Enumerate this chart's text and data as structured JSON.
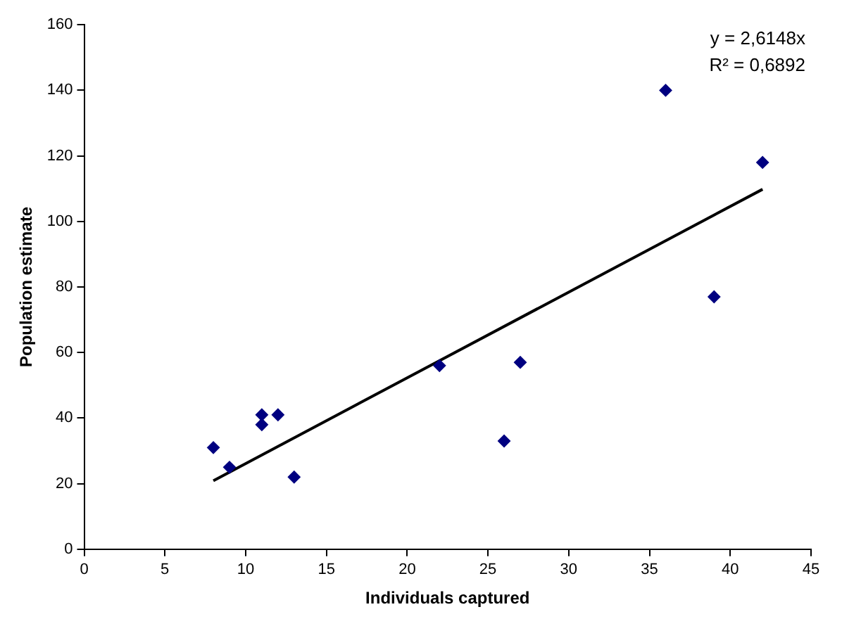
{
  "chart_data": {
    "type": "scatter",
    "xlabel": "Individuals captured",
    "ylabel": "Population estimate",
    "xlim": [
      0,
      45
    ],
    "xticks": [
      0,
      5,
      10,
      15,
      20,
      25,
      30,
      35,
      40,
      45
    ],
    "ylim": [
      0,
      160
    ],
    "yticks": [
      0,
      20,
      40,
      60,
      80,
      100,
      120,
      140,
      160
    ],
    "grid": false,
    "legend": false,
    "marker": "diamond",
    "annotations": [
      "y = 2,6148x",
      "R² = 0,6892"
    ],
    "series": [
      {
        "type": "scatter",
        "color": "#000080",
        "x": [
          8,
          9,
          11,
          11,
          12,
          13,
          22,
          26,
          27,
          36,
          39,
          42
        ],
        "values": [
          31,
          25,
          41,
          38,
          41,
          22,
          56,
          33,
          57,
          140,
          77,
          118
        ]
      },
      {
        "type": "line",
        "color": "#000000",
        "x": [
          8,
          42
        ],
        "values": [
          20.9,
          109.8
        ],
        "marker": "none",
        "line_style": "solid"
      }
    ]
  }
}
